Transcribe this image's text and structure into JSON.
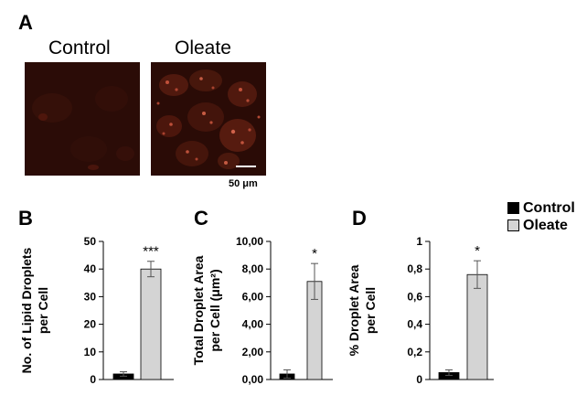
{
  "figure": {
    "panel_a": {
      "letter": "A",
      "images": [
        {
          "label": "Control"
        },
        {
          "label": "Oleate"
        }
      ],
      "scale_bar": "50 μm"
    },
    "panel_b": {
      "letter": "B"
    },
    "panel_c": {
      "letter": "C"
    },
    "panel_d": {
      "letter": "D"
    }
  },
  "legend": {
    "items": [
      {
        "label": "Control",
        "color": "#000000"
      },
      {
        "label": "Oleate",
        "color": "#d4d4d4"
      }
    ]
  },
  "chart_data": [
    {
      "type": "bar",
      "categories": [
        "Control",
        "Oleate"
      ],
      "series": [
        {
          "values": [
            2,
            40
          ],
          "errors": [
            0.8,
            2.8
          ],
          "colors": [
            "#000000",
            "#d4d4d4"
          ]
        }
      ],
      "significance": "***",
      "ylabel": "No. of  Lipid Droplets per Cell",
      "ylim": [
        0,
        50
      ],
      "yticks": [
        "0",
        "10",
        "20",
        "30",
        "40",
        "50"
      ]
    },
    {
      "type": "bar",
      "categories": [
        "Control",
        "Oleate"
      ],
      "series": [
        {
          "values": [
            0.4,
            7.1
          ],
          "errors": [
            0.3,
            1.3
          ],
          "colors": [
            "#000000",
            "#d4d4d4"
          ]
        }
      ],
      "significance": "*",
      "ylabel": "Total Droplet Area per Cell (μm²)",
      "ylim": [
        0,
        10
      ],
      "yticks": [
        "0,00",
        "2,00",
        "4,00",
        "6,00",
        "8,00",
        "10,00"
      ]
    },
    {
      "type": "bar",
      "categories": [
        "Control",
        "Oleate"
      ],
      "series": [
        {
          "values": [
            0.05,
            0.76
          ],
          "errors": [
            0.02,
            0.1
          ],
          "colors": [
            "#000000",
            "#d4d4d4"
          ]
        }
      ],
      "significance": "*",
      "ylabel": "% Droplet Area per Cell",
      "ylim": [
        0,
        1
      ],
      "yticks": [
        "0",
        "0,2",
        "0,4",
        "0,6",
        "0,8",
        "1"
      ]
    }
  ]
}
